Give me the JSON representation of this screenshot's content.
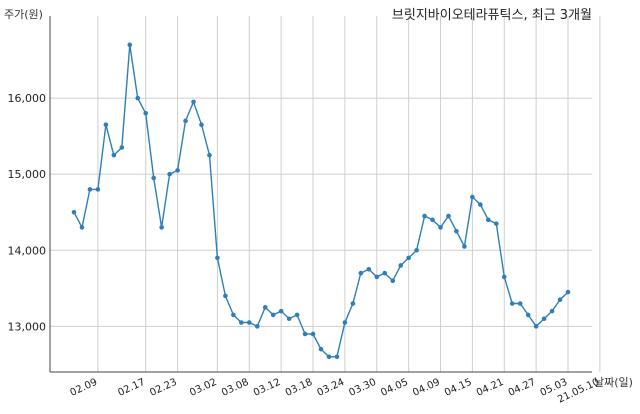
{
  "chart_data": {
    "type": "line",
    "title": "브릿지바이오테라퓨틱스, 최근 3개월",
    "ylabel": "주가(원)",
    "xlabel": "날짜(일)",
    "ylim": [
      12400,
      17000
    ],
    "yticks": [
      "13,000",
      "14,000",
      "15,000",
      "16,000"
    ],
    "ytick_values": [
      13000,
      14000,
      15000,
      16000
    ],
    "xticks": [
      "02.09",
      "02.17",
      "02.23",
      "03.02",
      "03.08",
      "03.12",
      "03.18",
      "03.24",
      "03.30",
      "04.05",
      "04.09",
      "04.15",
      "04.21",
      "04.27",
      "05.03",
      "21.05.10"
    ],
    "xtick_index": [
      3,
      9,
      13,
      18,
      22,
      26,
      30,
      34,
      38,
      42,
      46,
      50,
      54,
      58,
      62,
      66
    ],
    "grid": true,
    "series": [
      {
        "values": [
          14500,
          14300,
          14800,
          14800,
          15650,
          15250,
          15350,
          16700,
          16000,
          15800,
          14950,
          14300,
          15000,
          15050,
          15700,
          15950,
          15650,
          15250,
          13900,
          13400,
          13150,
          13050,
          13050,
          13000,
          13250,
          13150,
          13200,
          13100,
          13150,
          12900,
          12900,
          12700,
          12600,
          12600,
          13050,
          13300,
          13700,
          13750,
          13650,
          13700,
          13600,
          13800,
          13900,
          14000,
          14450,
          14400,
          14300,
          14450,
          14250,
          14050,
          14700,
          14600,
          14400,
          14350,
          13650,
          13300,
          13300,
          13150,
          13000,
          13100,
          13200,
          13350,
          13450
        ]
      }
    ]
  }
}
